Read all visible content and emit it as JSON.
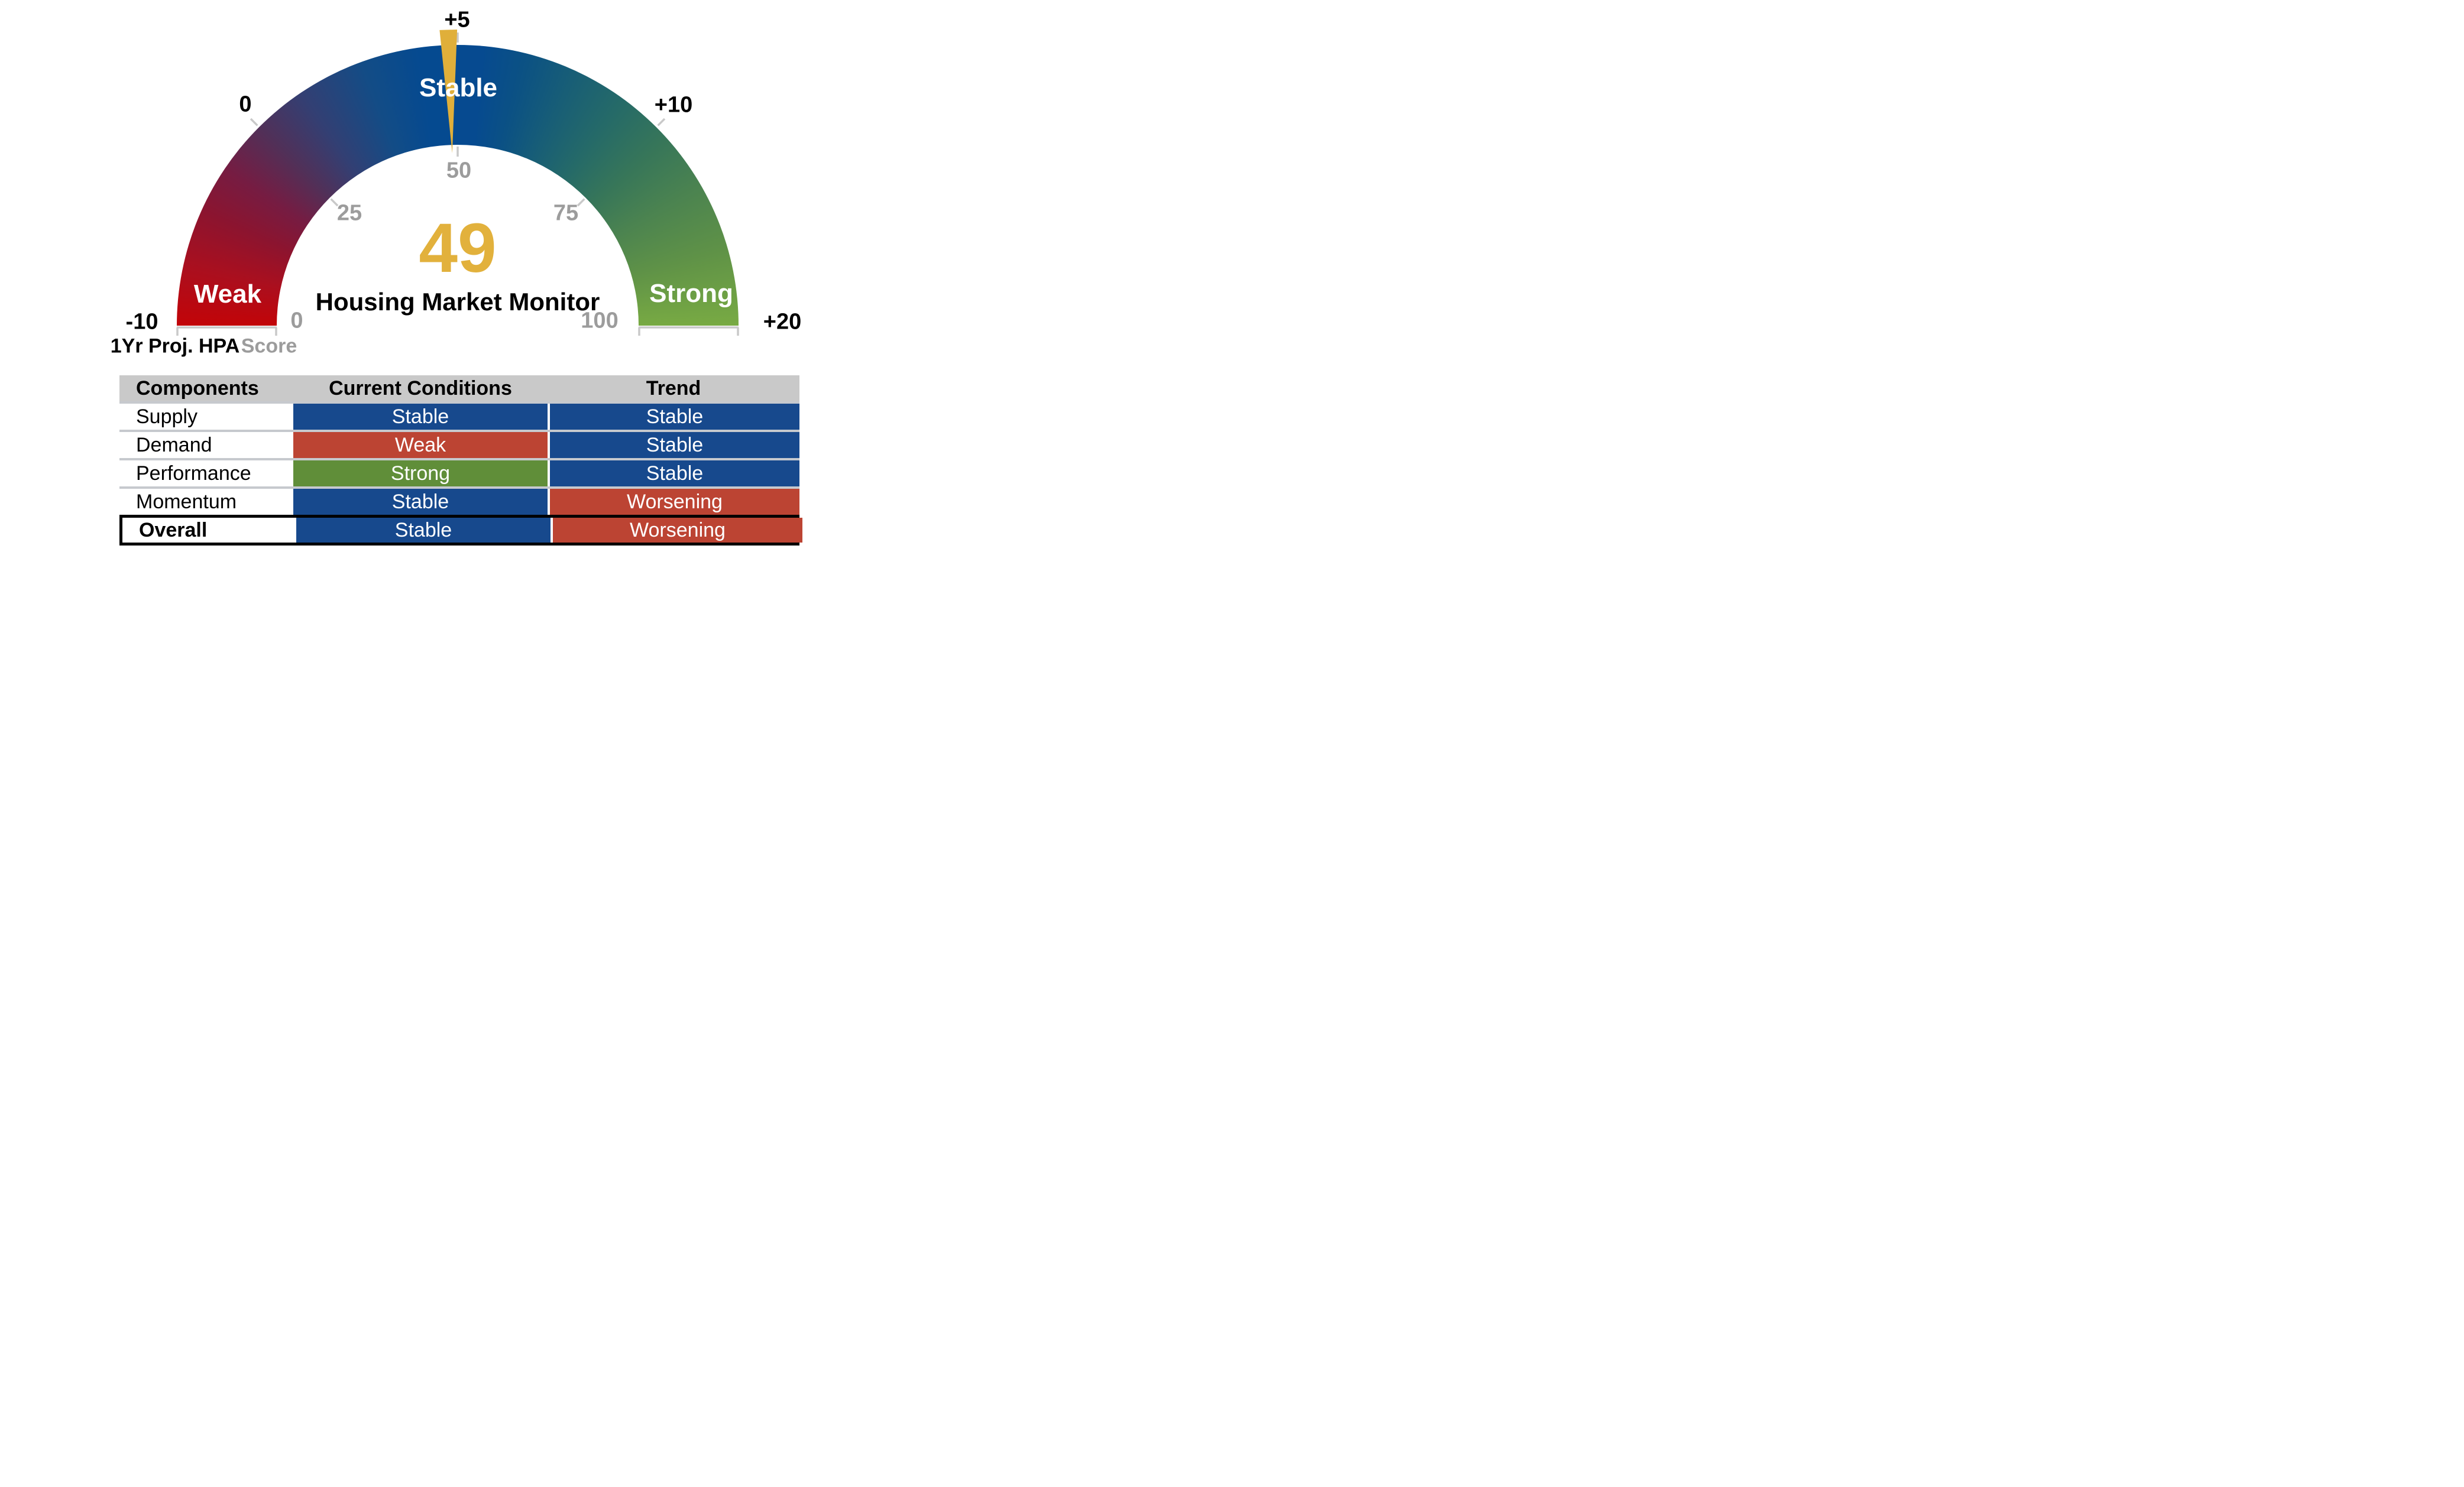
{
  "chart_data": {
    "type": "gauge",
    "title": "Housing Market Monitor",
    "value": 49,
    "value_color": "#e2b13c",
    "needle_color": "#e0af3a",
    "score_axis": {
      "label": "Score",
      "min": 0,
      "max": 100,
      "tick_labels": [
        "0",
        "25",
        "50",
        "75",
        "100"
      ]
    },
    "projection_axis": {
      "label": "1Yr Proj. HPA",
      "tick_labels": [
        "-10",
        "0",
        "+5",
        "+10",
        "+20"
      ]
    },
    "bands": [
      {
        "label": "Weak",
        "color": "#b9121f"
      },
      {
        "label": "Stable",
        "color": "#064a90"
      },
      {
        "label": "Strong",
        "color": "#5f9247"
      }
    ],
    "arc_gradient": [
      "#c20408",
      "#8c142f",
      "#513058",
      "#064a90",
      "#256a68",
      "#78aa43"
    ]
  },
  "gauge": {
    "value": "49",
    "title": "Housing Market Monitor",
    "outer_scale": {
      "name": "1Yr Proj. HPA",
      "labels": [
        "-10",
        "0",
        "+5",
        "+10",
        "+20"
      ]
    },
    "inner_scale": {
      "name": "Score",
      "labels": [
        "0",
        "25",
        "50",
        "75",
        "100"
      ]
    },
    "band_labels": [
      "Weak",
      "Stable",
      "Strong"
    ]
  },
  "table": {
    "headers": [
      "Components",
      "Current Conditions",
      "Trend"
    ],
    "rows": [
      {
        "component": "Supply",
        "current": "Stable",
        "current_bg": "#17498d",
        "trend": "Stable",
        "trend_bg": "#17498d"
      },
      {
        "component": "Demand",
        "current": "Weak",
        "current_bg": "#bc4433",
        "trend": "Stable",
        "trend_bg": "#17498d"
      },
      {
        "component": "Performance",
        "current": "Strong",
        "current_bg": "#608e39",
        "trend": "Stable",
        "trend_bg": "#17498d"
      },
      {
        "component": "Momentum",
        "current": "Stable",
        "current_bg": "#17498d",
        "trend": "Worsening",
        "trend_bg": "#bc4433"
      },
      {
        "component": "Overall",
        "current": "Stable",
        "current_bg": "#17498d",
        "trend": "Worsening",
        "trend_bg": "#bc4433"
      }
    ]
  },
  "colors": {
    "status_blue": "#17498d",
    "status_red": "#bc4433",
    "status_green": "#608e39",
    "header_gray": "#c9c9c9",
    "score_gray": "#9c9c9c",
    "tick_gray": "#c9c9c9",
    "gold": "#e2b13c"
  }
}
